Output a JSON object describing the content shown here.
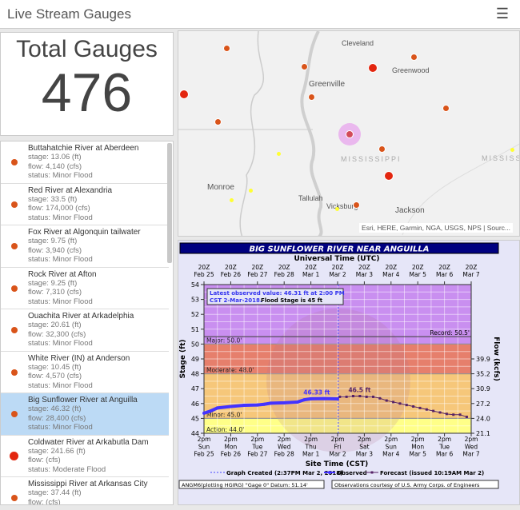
{
  "header": {
    "title": "Live Stream Gauges",
    "menu_icon": "hamburger-icon"
  },
  "total": {
    "label": "Total Gauges",
    "count": "476"
  },
  "gauges": [
    {
      "name": "Buttahatchie River at Aberdeen",
      "stage": "stage: 13.06 (ft)",
      "flow": "flow: 4,140 (cfs)",
      "status": "status: Minor Flood",
      "color": "#d9541a"
    },
    {
      "name": "Red River at Alexandria",
      "stage": "stage: 33.5 (ft)",
      "flow": "flow: 174,000 (cfs)",
      "status": "status: Minor Flood",
      "color": "#d9541a"
    },
    {
      "name": "Fox River at Algonquin tailwater",
      "stage": "stage: 9.75 (ft)",
      "flow": "flow: 3,940 (cfs)",
      "status": "status: Minor Flood",
      "color": "#d9541a"
    },
    {
      "name": "Rock River at Afton",
      "stage": "stage: 9.25 (ft)",
      "flow": "flow: 7,310 (cfs)",
      "status": "status: Minor Flood",
      "color": "#d9541a"
    },
    {
      "name": "Ouachita River at Arkadelphia",
      "stage": "stage: 20.61 (ft)",
      "flow": "flow: 32,300 (cfs)",
      "status": "status: Minor Flood",
      "color": "#d9541a"
    },
    {
      "name": "White River (IN) at Anderson",
      "stage": "stage: 10.45 (ft)",
      "flow": "flow: 4,570 (cfs)",
      "status": "status: Minor Flood",
      "color": "#d9541a"
    },
    {
      "name": "Big Sunflower River at Anguilla",
      "stage": "stage: 46.32 (ft)",
      "flow": "flow: 28,400 (cfs)",
      "status": "status: Minor Flood",
      "color": "#d9541a",
      "selected": true
    },
    {
      "name": "Coldwater River at Arkabutla Dam",
      "stage": "stage: 241.66 (ft)",
      "flow": "flow: (cfs)",
      "status": "status: Moderate Flood",
      "color": "#e3260f"
    },
    {
      "name": "Mississippi River at Arkansas City",
      "stage": "stage: 37.44 (ft)",
      "flow": "flow: (cfs)",
      "status": "",
      "color": "#d9541a"
    }
  ],
  "map": {
    "labels": [
      "Cleveland",
      "Greenwood",
      "Greenville",
      "Monroe",
      "Tallulah",
      "Vicksburg",
      "Jackson"
    ],
    "state_labels": [
      "MISSISSIPPI",
      "MISSISS"
    ],
    "attribution": "Esri, HERE, Garmin, NGA, USGS, NPS | Sourc..."
  },
  "chart_data": {
    "type": "line",
    "title": "BIG SUNFLOWER RIVER NEAR ANGUILLA",
    "top_axis_label": "Universal Time (UTC)",
    "top_ticks": [
      [
        "20Z",
        "Feb 25"
      ],
      [
        "20Z",
        "Feb 26"
      ],
      [
        "20Z",
        "Feb 27"
      ],
      [
        "20Z",
        "Feb 28"
      ],
      [
        "20Z",
        "Mar 1"
      ],
      [
        "20Z",
        "Mar 2"
      ],
      [
        "20Z",
        "Mar 3"
      ],
      [
        "20Z",
        "Mar 4"
      ],
      [
        "20Z",
        "Mar 5"
      ],
      [
        "20Z",
        "Mar 6"
      ],
      [
        "20Z",
        "Mar 7"
      ]
    ],
    "bottom_ticks": [
      [
        "2pm",
        "Sun",
        "Feb 25"
      ],
      [
        "2pm",
        "Mon",
        "Feb 26"
      ],
      [
        "2pm",
        "Tue",
        "Feb 27"
      ],
      [
        "2pm",
        "Wed",
        "Feb 28"
      ],
      [
        "2pm",
        "Thu",
        "Mar 1"
      ],
      [
        "2pm",
        "Fri",
        "Mar 2"
      ],
      [
        "2pm",
        "Sat",
        "Mar 3"
      ],
      [
        "2pm",
        "Sun",
        "Mar 4"
      ],
      [
        "2pm",
        "Mon",
        "Mar 5"
      ],
      [
        "2pm",
        "Tue",
        "Mar 6"
      ],
      [
        "2pm",
        "Wed",
        "Mar 7"
      ]
    ],
    "xlabel": "Site Time (CST)",
    "xlim": [
      "2018-02-25 14:00",
      "2018-03-07 14:00"
    ],
    "ylabel": "Stage (ft)",
    "ylim": [
      44,
      54
    ],
    "yticks": [
      44,
      45,
      46,
      47,
      48,
      49,
      50,
      51,
      52,
      53,
      54
    ],
    "y2label": "Flow (kcfs)",
    "y2ticks": [
      {
        "stage": 44,
        "label": "21.1"
      },
      {
        "stage": 45,
        "label": "24.0"
      },
      {
        "stage": 46,
        "label": "27.2"
      },
      {
        "stage": 47,
        "label": "30.9"
      },
      {
        "stage": 48,
        "label": "35.2"
      },
      {
        "stage": 49,
        "label": "39.9"
      }
    ],
    "bands": [
      {
        "name": "Action: 44.0'",
        "from": 44,
        "to": 45,
        "color": "#ffff88"
      },
      {
        "name": "Minor: 45.0'",
        "from": 45,
        "to": 48,
        "color": "#f6c77a"
      },
      {
        "name": "Moderate: 48.0'",
        "from": 48,
        "to": 50,
        "color": "#e67f6c"
      },
      {
        "name": "Major: 50.0'",
        "from": 50,
        "to": 54,
        "color": "#c98ff0"
      }
    ],
    "record": {
      "label": "Record: 50.5'",
      "value": 50.5
    },
    "latest_box": {
      "line1": "Latest observed value: 46.31 ft at 2:00 PM",
      "line2": "CST 2-Mar-2018.",
      "line2b": "Flood Stage is 45 ft"
    },
    "graph_created": "2018-03-02 14:37",
    "series": [
      {
        "name": "Observed",
        "color": "#4433ff",
        "peak_label": "46.33 ft",
        "x": [
          "2018-02-25 14:00",
          "2018-02-25 20:00",
          "2018-02-26 02:00",
          "2018-02-26 14:00",
          "2018-02-27 02:00",
          "2018-02-27 14:00",
          "2018-02-27 20:00",
          "2018-02-28 02:00",
          "2018-02-28 14:00",
          "2018-03-01 02:00",
          "2018-03-01 08:00",
          "2018-03-01 14:00",
          "2018-03-02 02:00",
          "2018-03-02 14:00"
        ],
        "y": [
          45.35,
          45.5,
          45.7,
          45.8,
          45.88,
          45.9,
          45.95,
          46.02,
          46.05,
          46.1,
          46.25,
          46.32,
          46.33,
          46.31
        ]
      },
      {
        "name": "Forecast (issued 10:19AM Mar 2)",
        "color": "#552266",
        "peak_label": "46.5 ft",
        "x": [
          "2018-03-02 16:00",
          "2018-03-02 22:00",
          "2018-03-03 04:00",
          "2018-03-03 10:00",
          "2018-03-03 16:00",
          "2018-03-03 22:00",
          "2018-03-04 04:00",
          "2018-03-04 10:00",
          "2018-03-04 16:00",
          "2018-03-04 22:00",
          "2018-03-05 04:00",
          "2018-03-05 10:00",
          "2018-03-05 16:00",
          "2018-03-05 22:00",
          "2018-03-06 04:00",
          "2018-03-06 10:00",
          "2018-03-06 16:00",
          "2018-03-06 22:00",
          "2018-03-07 04:00",
          "2018-03-07 10:00"
        ],
        "y": [
          46.45,
          46.45,
          46.5,
          46.5,
          46.45,
          46.45,
          46.35,
          46.2,
          46.1,
          46.0,
          45.9,
          45.8,
          45.7,
          45.6,
          45.5,
          45.4,
          45.3,
          45.25,
          45.25,
          45.1
        ]
      }
    ],
    "legend": {
      "created": "Graph Created (2:37PM Mar 2, 2018)",
      "observed": "Observed",
      "forecast": "Forecast (issued 10:19AM Mar 2)"
    },
    "footer_left": "ANGM6(plotting HGIRG) \"Gage 0\" Datum: 51.14'",
    "footer_right": "Observations courtesy of U.S. Army Corps. of Engineers"
  }
}
